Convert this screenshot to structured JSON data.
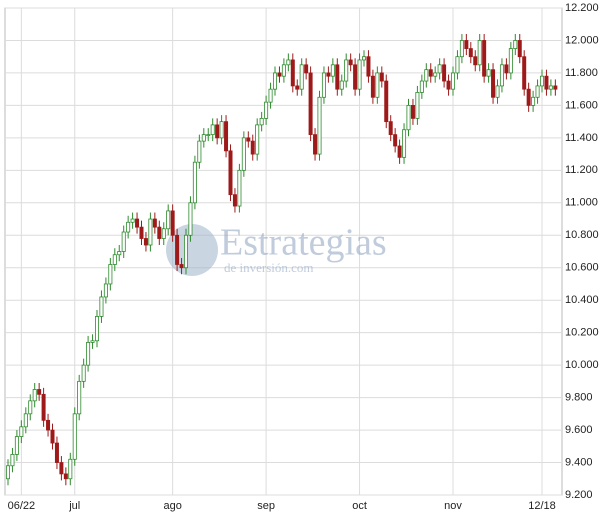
{
  "chart_data": {
    "type": "candlestick",
    "watermark": {
      "title": "Estrategias",
      "subtitle": "de inversión.com"
    },
    "up_color": "#2e8b2e",
    "down_color": "#9e1a1a",
    "grid": true,
    "ylim": [
      9200,
      12200
    ],
    "yticks": [
      {
        "value": 9200,
        "label": "9.200"
      },
      {
        "value": 9400,
        "label": "9.400"
      },
      {
        "value": 9600,
        "label": "9.600"
      },
      {
        "value": 9800,
        "label": "9.800"
      },
      {
        "value": 10000,
        "label": "10.000"
      },
      {
        "value": 10200,
        "label": "10.200"
      },
      {
        "value": 10400,
        "label": "10.400"
      },
      {
        "value": 10600,
        "label": "10.600"
      },
      {
        "value": 10800,
        "label": "10.800"
      },
      {
        "value": 11000,
        "label": "11.000"
      },
      {
        "value": 11200,
        "label": "11.200"
      },
      {
        "value": 11400,
        "label": "11.400"
      },
      {
        "value": 11600,
        "label": "11.600"
      },
      {
        "value": 11800,
        "label": "11.800"
      },
      {
        "value": 12000,
        "label": "12.000"
      },
      {
        "value": 12200,
        "label": "12.200"
      }
    ],
    "categories": [
      null,
      null,
      null,
      "06/22",
      null,
      null,
      null,
      null,
      null,
      null,
      null,
      null,
      null,
      null,
      null,
      "jul",
      null,
      null,
      null,
      null,
      null,
      null,
      null,
      null,
      null,
      null,
      null,
      null,
      null,
      null,
      null,
      null,
      null,
      null,
      null,
      null,
      null,
      "ago",
      null,
      null,
      null,
      null,
      null,
      null,
      null,
      null,
      null,
      null,
      null,
      null,
      null,
      null,
      null,
      null,
      null,
      null,
      null,
      null,
      "sep",
      null,
      null,
      null,
      null,
      null,
      null,
      null,
      null,
      null,
      null,
      null,
      null,
      null,
      null,
      null,
      null,
      null,
      null,
      null,
      null,
      "oct",
      null,
      null,
      null,
      null,
      null,
      null,
      null,
      null,
      null,
      null,
      null,
      null,
      null,
      null,
      null,
      null,
      null,
      null,
      null,
      null,
      "nov",
      null,
      null,
      null,
      null,
      null,
      null,
      null,
      null,
      null,
      null,
      null,
      null,
      null,
      null,
      null,
      null,
      null,
      null,
      null,
      "12/18",
      null,
      null,
      null
    ],
    "open": [
      9300,
      9380,
      9450,
      9560,
      9620,
      9700,
      9780,
      9850,
      9820,
      9660,
      9600,
      9520,
      9400,
      9330,
      9300,
      9420,
      9700,
      9900,
      10000,
      10140,
      10150,
      10300,
      10420,
      10500,
      10620,
      10680,
      10700,
      10820,
      10880,
      10900,
      10850,
      10780,
      10740,
      10900,
      10850,
      10780,
      10840,
      10950,
      10800,
      10620,
      10600,
      10800,
      11000,
      11250,
      11380,
      11420,
      11420,
      11480,
      11400,
      11500,
      11320,
      11050,
      10980,
      11200,
      11400,
      11380,
      11300,
      11480,
      11520,
      11620,
      11700,
      11800,
      11780,
      11850,
      11880,
      11720,
      11700,
      11850,
      11800,
      11420,
      11300,
      11650,
      11800,
      11780,
      11850,
      11700,
      11750,
      11880,
      11850,
      11700,
      11880,
      11900,
      11780,
      11650,
      11800,
      11750,
      11500,
      11420,
      11350,
      11280,
      11450,
      11600,
      11520,
      11680,
      11750,
      11820,
      11780,
      11800,
      11850,
      11750,
      11700,
      11800,
      11900,
      12000,
      11950,
      11900,
      11850,
      12000,
      11780,
      11820,
      11650,
      11720,
      11850,
      11800,
      11950,
      12000,
      11900,
      11700,
      11600,
      11650,
      11720,
      11780,
      11700,
      11720
    ],
    "high": [
      9420,
      9490,
      9600,
      9660,
      9740,
      9820,
      9890,
      9890,
      9860,
      9700,
      9640,
      9560,
      9440,
      9370,
      9460,
      9740,
      9940,
      10040,
      10180,
      10190,
      10340,
      10460,
      10540,
      10660,
      10720,
      10740,
      10860,
      10920,
      10940,
      10940,
      10890,
      10820,
      10940,
      10940,
      10890,
      10880,
      10990,
      10990,
      10840,
      10660,
      10840,
      11040,
      11290,
      11420,
      11460,
      11460,
      11520,
      11520,
      11540,
      11540,
      11360,
      11090,
      11240,
      11440,
      11440,
      11420,
      11520,
      11560,
      11660,
      11740,
      11840,
      11840,
      11890,
      11920,
      11920,
      11760,
      11890,
      11890,
      11840,
      11460,
      11690,
      11840,
      11840,
      11890,
      11890,
      11790,
      11920,
      11920,
      11890,
      11920,
      11940,
      11940,
      11820,
      11840,
      11840,
      11790,
      11540,
      11460,
      11390,
      11490,
      11640,
      11640,
      11720,
      11790,
      11860,
      11860,
      11840,
      11890,
      11890,
      11790,
      11840,
      11940,
      12040,
      12040,
      11990,
      11940,
      12040,
      12040,
      11860,
      11860,
      11760,
      11890,
      11890,
      11990,
      12040,
      12040,
      11940,
      11740,
      11690,
      11760,
      11820,
      11820,
      11760,
      11760
    ],
    "low": [
      9260,
      9340,
      9410,
      9520,
      9580,
      9660,
      9740,
      9780,
      9620,
      9560,
      9480,
      9360,
      9290,
      9260,
      9260,
      9380,
      9660,
      9860,
      9960,
      10100,
      10110,
      10260,
      10380,
      10460,
      10580,
      10640,
      10660,
      10780,
      10840,
      10810,
      10740,
      10700,
      10700,
      10810,
      10740,
      10740,
      10800,
      10760,
      10580,
      10560,
      10560,
      10760,
      10960,
      11210,
      11340,
      11380,
      11380,
      11360,
      11360,
      11280,
      11010,
      10940,
      10940,
      11160,
      11340,
      11260,
      11260,
      11440,
      11480,
      11580,
      11660,
      11740,
      11740,
      11810,
      11680,
      11660,
      11660,
      11760,
      11380,
      11260,
      11260,
      11610,
      11740,
      11740,
      11660,
      11660,
      11710,
      11810,
      11660,
      11660,
      11840,
      11740,
      11610,
      11610,
      11710,
      11460,
      11380,
      11310,
      11240,
      11240,
      11410,
      11480,
      11480,
      11640,
      11710,
      11740,
      11740,
      11760,
      11710,
      11660,
      11660,
      11760,
      11860,
      11910,
      11860,
      11810,
      11810,
      11740,
      11740,
      11610,
      11610,
      11680,
      11760,
      11760,
      11910,
      11860,
      11660,
      11560,
      11560,
      11610,
      11680,
      11660,
      11660,
      11660
    ],
    "close": [
      9380,
      9450,
      9560,
      9620,
      9700,
      9780,
      9850,
      9820,
      9660,
      9600,
      9520,
      9400,
      9330,
      9300,
      9420,
      9700,
      9900,
      10000,
      10140,
      10150,
      10300,
      10420,
      10500,
      10620,
      10680,
      10700,
      10820,
      10880,
      10900,
      10850,
      10780,
      10740,
      10900,
      10850,
      10780,
      10840,
      10950,
      10800,
      10620,
      10600,
      10800,
      11000,
      11250,
      11380,
      11420,
      11420,
      11480,
      11400,
      11500,
      11320,
      11050,
      10980,
      11200,
      11400,
      11380,
      11300,
      11480,
      11520,
      11620,
      11700,
      11800,
      11780,
      11850,
      11880,
      11720,
      11700,
      11850,
      11800,
      11420,
      11300,
      11650,
      11800,
      11780,
      11850,
      11700,
      11750,
      11880,
      11850,
      11700,
      11880,
      11900,
      11780,
      11650,
      11800,
      11750,
      11500,
      11420,
      11350,
      11280,
      11450,
      11600,
      11520,
      11680,
      11750,
      11820,
      11780,
      11800,
      11850,
      11750,
      11700,
      11800,
      11900,
      12000,
      11950,
      11900,
      11850,
      12000,
      11780,
      11820,
      11650,
      11720,
      11850,
      11800,
      11950,
      12000,
      11900,
      11700,
      11600,
      11650,
      11720,
      11780,
      11700,
      11720,
      11700
    ]
  }
}
